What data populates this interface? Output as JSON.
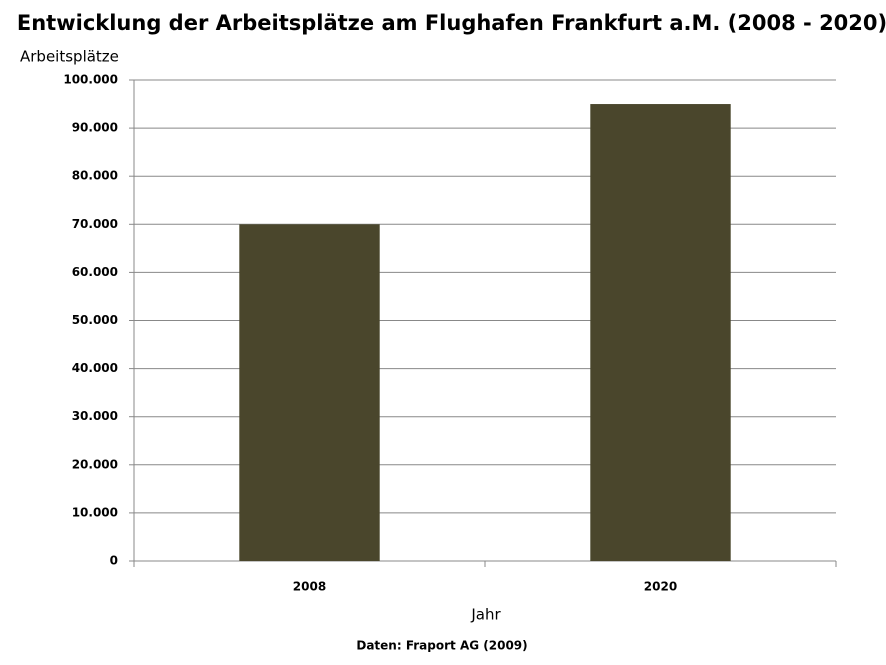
{
  "chart_data": {
    "type": "bar",
    "title": "Entwicklung der Arbeitsplätze am Flughafen Frankfurt a.M. (2008 - 2020)",
    "y_label": "Arbeitsplätze",
    "x_label": "Jahr",
    "source": "Daten: Fraport AG (2009)",
    "categories": [
      "2008",
      "2020"
    ],
    "values": [
      70000,
      95000
    ],
    "color": "#4a462c",
    "ylim": [
      0,
      100000
    ],
    "yticks": [
      0,
      {
        "value": 10000,
        "label": "10.000"
      },
      {
        "value": 20000,
        "label": "20.000"
      },
      {
        "value": 30000,
        "label": "30.000"
      },
      {
        "value": 40000,
        "label": "40.000"
      },
      {
        "value": 50000,
        "label": "50.000"
      },
      {
        "value": 60000,
        "label": "60.000"
      },
      {
        "value": 70000,
        "label": "70.000"
      },
      {
        "value": 80000,
        "label": "80.000"
      },
      {
        "value": 90000,
        "label": "90.000"
      },
      {
        "value": 100000,
        "label": "100.000"
      }
    ],
    "grid": true
  }
}
